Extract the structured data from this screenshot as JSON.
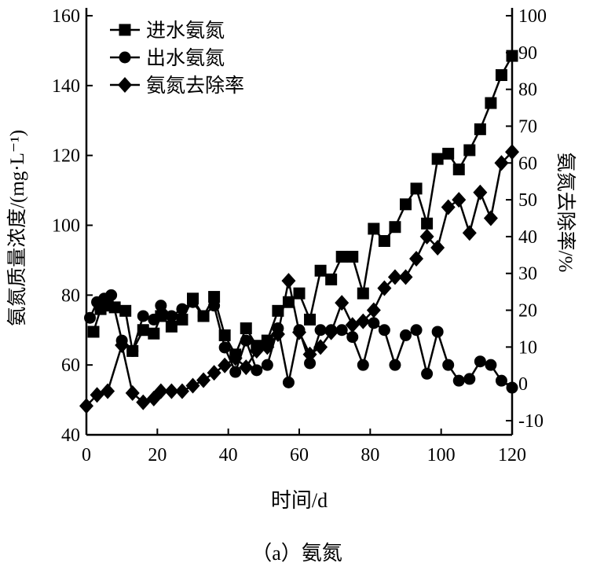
{
  "chart_data": {
    "type": "line",
    "caption": "（a）氨氮",
    "xlabel": "时间/d",
    "ylabel_left": "氨氮质量浓度/(mg·L⁻¹)",
    "ylabel_right": "氨氮去除率/%",
    "xlim": [
      0,
      120
    ],
    "ylim_left": [
      40,
      160
    ],
    "ylim_right": [
      -10,
      100
    ],
    "xticks": [
      0,
      20,
      40,
      60,
      80,
      100,
      120
    ],
    "yticks_left": [
      40,
      60,
      80,
      100,
      120,
      140,
      160
    ],
    "yticks_right": [
      -10,
      0,
      10,
      20,
      30,
      40,
      50,
      60,
      70,
      80,
      90,
      100
    ],
    "legend_position": "top-left",
    "grid": false,
    "series": [
      {
        "name": "进水氨氮",
        "marker": "square",
        "axis": "left",
        "x": [
          2,
          4,
          6,
          8,
          11,
          13,
          16,
          19,
          21,
          24,
          27,
          30,
          33,
          36,
          39,
          42,
          45,
          48,
          51,
          54,
          57,
          60,
          63,
          66,
          69,
          72,
          75,
          78,
          81,
          84,
          87,
          90,
          93,
          96,
          99,
          102,
          105,
          108,
          111,
          114,
          117,
          120
        ],
        "y": [
          69.5,
          76,
          77,
          76.5,
          75.5,
          64,
          70,
          69,
          74,
          71,
          73,
          79,
          74,
          79.5,
          68.5,
          63,
          70.5,
          65.5,
          67,
          75.5,
          78,
          80.5,
          73,
          87,
          84.5,
          91,
          91,
          80.5,
          99,
          95.5,
          99.5,
          106,
          110.5,
          100.5,
          119,
          120.5,
          116,
          121.5,
          127.5,
          135,
          143,
          148.5
        ]
      },
      {
        "name": "出水氨氮",
        "marker": "circle",
        "axis": "left",
        "x": [
          1,
          3,
          5,
          7,
          10,
          13,
          16,
          19,
          21,
          24,
          27,
          30,
          33,
          36,
          39,
          42,
          45,
          48,
          51,
          54,
          57,
          60,
          63,
          66,
          69,
          72,
          75,
          78,
          81,
          84,
          87,
          90,
          93,
          96,
          99,
          102,
          105,
          108,
          111,
          114,
          117,
          120
        ],
        "y": [
          73.5,
          78,
          79,
          80,
          67,
          64,
          74,
          73,
          77,
          74,
          76,
          78,
          74,
          77,
          65,
          58,
          67,
          58.5,
          60,
          70.5,
          55,
          70,
          60.5,
          70,
          70,
          70,
          68,
          60,
          72,
          70,
          60,
          68.5,
          70,
          57.5,
          69.5,
          60,
          55.5,
          56,
          61,
          60,
          55.5,
          53.5
        ]
      },
      {
        "name": "氨氮去除率",
        "marker": "diamond",
        "axis": "right",
        "x": [
          0,
          3,
          6,
          10,
          13,
          16,
          19,
          21,
          24,
          27,
          30,
          33,
          36,
          39,
          42,
          45,
          48,
          51,
          54,
          57,
          60,
          63,
          66,
          69,
          72,
          75,
          78,
          81,
          84,
          87,
          90,
          93,
          96,
          99,
          102,
          105,
          108,
          111,
          114,
          117,
          120
        ],
        "y": [
          -6,
          -3,
          -2,
          10.5,
          -2.5,
          -5,
          -4,
          -2,
          -2,
          -2,
          -0.5,
          1,
          3,
          5,
          7,
          4.5,
          9,
          10,
          13.5,
          28,
          14,
          8,
          10,
          14,
          22,
          16,
          17,
          20,
          26,
          29,
          29,
          34,
          40,
          37,
          48,
          50,
          41,
          52,
          45,
          60,
          63
        ]
      }
    ]
  }
}
